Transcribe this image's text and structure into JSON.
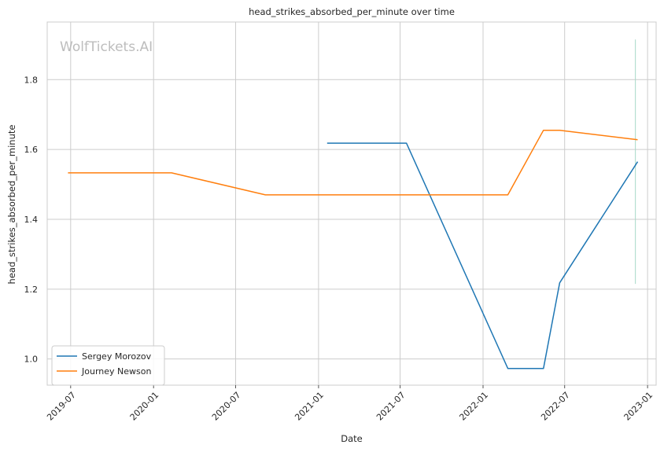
{
  "chart_data": {
    "type": "line",
    "title": "head_strikes_absorbed_per_minute over time",
    "xlabel": "Date",
    "ylabel": "head_strikes_absorbed_per_minute",
    "watermark": "WolfTickets.AI",
    "x_ticks": [
      "2019-07",
      "2020-01",
      "2020-07",
      "2021-01",
      "2021-07",
      "2022-01",
      "2022-07",
      "2023-01"
    ],
    "y_ticks": [
      1.0,
      1.2,
      1.4,
      1.6,
      1.8
    ],
    "xlim": [
      "2019-05-10",
      "2023-01-20"
    ],
    "ylim": [
      0.925,
      1.965
    ],
    "grid": true,
    "legend_position": "lower-left",
    "series": [
      {
        "name": "Sergey Morozov",
        "color": "#1f77b4",
        "points": [
          [
            "2021-01-20",
            1.618
          ],
          [
            "2021-07-15",
            1.618
          ],
          [
            "2022-02-25",
            0.973
          ],
          [
            "2022-05-15",
            0.973
          ],
          [
            "2022-06-20",
            1.218
          ],
          [
            "2022-12-10",
            1.565
          ]
        ]
      },
      {
        "name": "Journey Newson",
        "color": "#ff7f0e",
        "points": [
          [
            "2019-06-25",
            1.533
          ],
          [
            "2020-02-10",
            1.533
          ],
          [
            "2020-09-05",
            1.47
          ],
          [
            "2022-02-25",
            1.47
          ],
          [
            "2022-05-15",
            1.655
          ],
          [
            "2022-06-20",
            1.655
          ],
          [
            "2022-12-10",
            1.628
          ]
        ]
      }
    ],
    "annotation_line": {
      "color": "#a8d8c8",
      "x": "2022-12-05",
      "y_range": [
        1.215,
        1.915
      ]
    }
  }
}
